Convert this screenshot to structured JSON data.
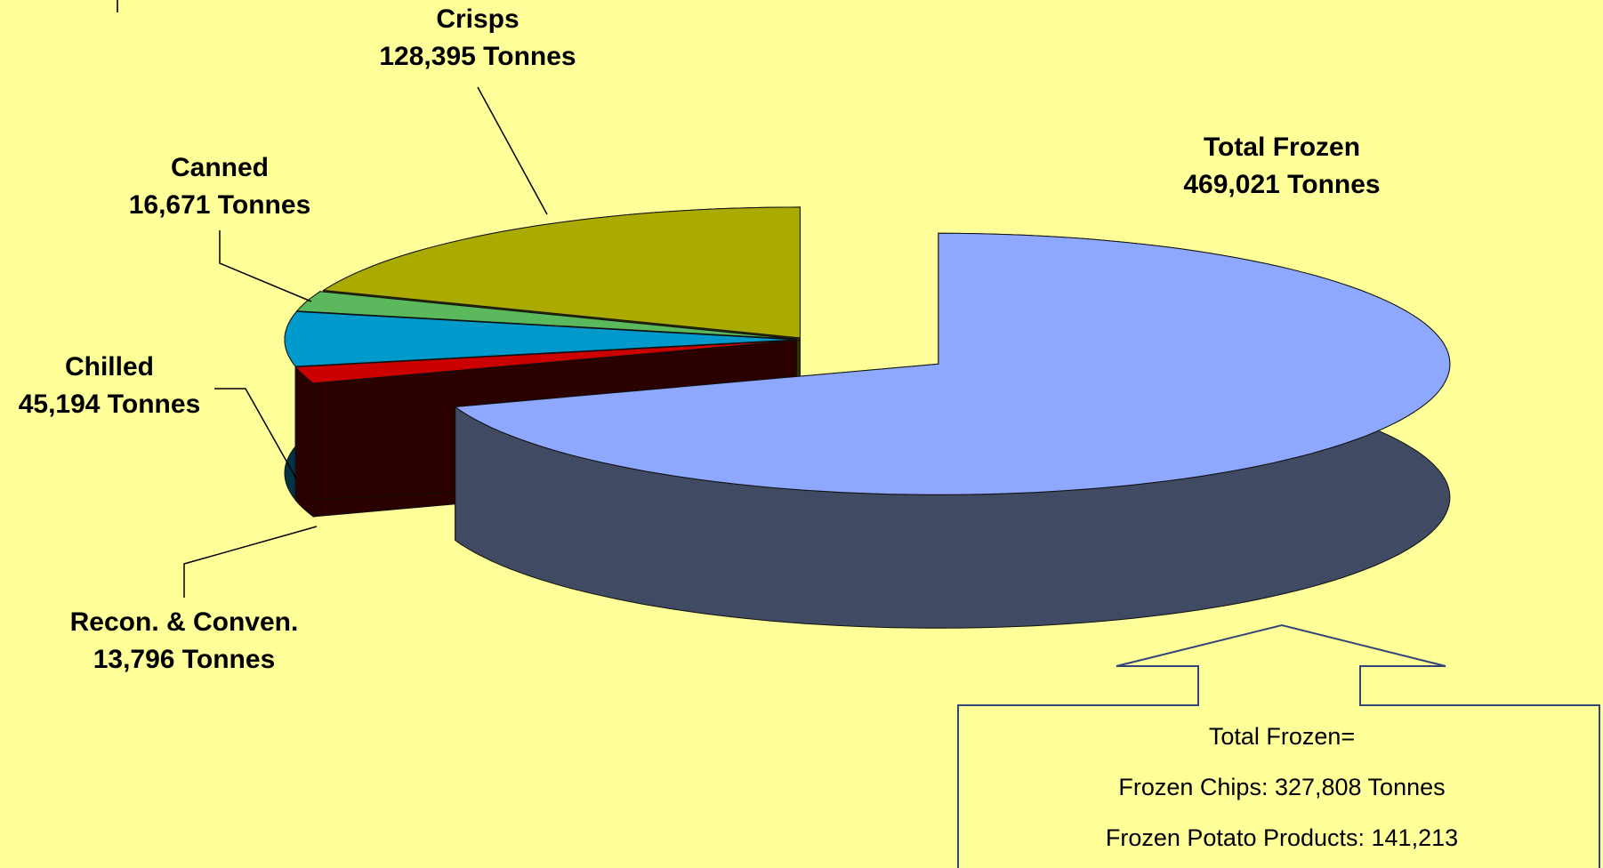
{
  "chart_data": {
    "type": "pie3d",
    "categories": [
      "Total Frozen",
      "Recon. & Conven.",
      "Chilled",
      "Canned",
      "Crisps"
    ],
    "values": [
      469021,
      13796,
      45194,
      16671,
      128395
    ],
    "value_labels": [
      "469,021 Tonnes",
      "13,796 Tonnes",
      "45,194 Tonnes",
      "16,671 Tonnes",
      "128,395 Tonnes"
    ],
    "colors": [
      "#8fa8ff",
      "#cc0000",
      "#0099cc",
      "#5cb85c",
      "#aaaa00"
    ],
    "side_colors": [
      "#414a63",
      "#2a0000",
      "#003344",
      "#1e3d1e",
      "#333300"
    ],
    "callout": [
      "Total Frozen=",
      "Frozen Chips: 327,808 Tonnes",
      "Frozen Potato Products: 141,213"
    ]
  }
}
